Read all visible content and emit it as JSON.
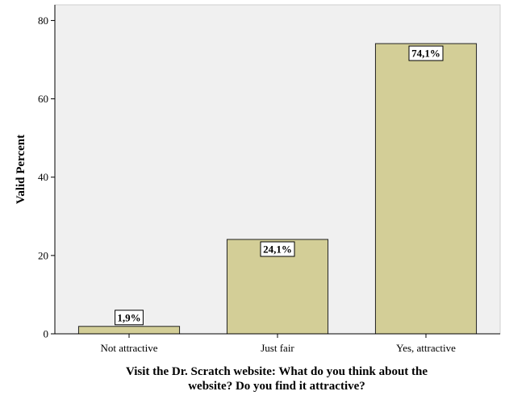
{
  "chart_data": {
    "type": "bar",
    "categories": [
      "Not attractive",
      "Just fair",
      "Yes, attractive"
    ],
    "values": [
      1.9,
      24.1,
      74.1
    ],
    "data_labels": [
      "1,9%",
      "24,1%",
      "74,1%"
    ],
    "ylabel": "Valid Percent",
    "xlabel_lines": [
      "Visit the Dr. Scratch website: What do you think about the",
      "website? Do you find it attractive?"
    ],
    "ylim": [
      0,
      84
    ],
    "yticks": [
      0,
      20,
      40,
      60,
      80
    ],
    "ytick_labels": [
      "0",
      "20",
      "40",
      "60",
      "80"
    ],
    "grid": false,
    "legend": "none"
  },
  "colors": {
    "plot_background": "#f0f0f0",
    "bar_fill": "#d3ce97",
    "bar_stroke": "#222222",
    "label_box": "#ffffff"
  }
}
